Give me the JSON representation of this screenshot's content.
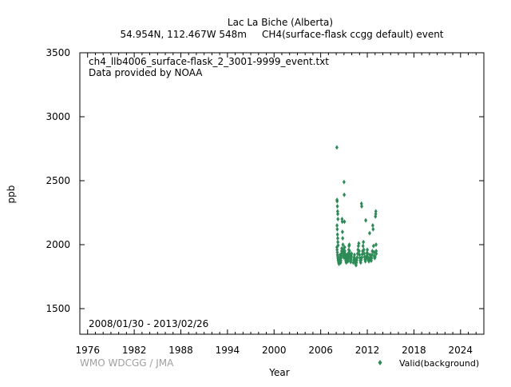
{
  "title_line1": "Lac La Biche (Alberta)",
  "title_line2": "54.954N, 112.467W 548m     CH4(surface-flask ccgg default) event",
  "file_label": "ch4_llb4006_surface-flask_2_3001-9999_event.txt",
  "provider_label": "Data provided by NOAA",
  "date_range": "2008/01/30 - 2013/02/26",
  "credit": "WMO WDCGG / JMA",
  "colors": {
    "series": "#2e8b57",
    "axis": "#000000",
    "credit": "#a0a0a0"
  },
  "chart_data": {
    "type": "scatter",
    "title": "Lac La Biche (Alberta)",
    "xlabel": "Year",
    "ylabel": "ppb",
    "xlim": [
      1975,
      2027
    ],
    "ylim": [
      1300,
      3500
    ],
    "xticks": [
      1976,
      1982,
      1988,
      1994,
      2000,
      2006,
      2012,
      2018,
      2024
    ],
    "yticks": [
      1500,
      2000,
      2500,
      3000,
      3500
    ],
    "grid": false,
    "legend": "bottom-right",
    "series": [
      {
        "name": "Valid(background)",
        "marker": "diamond",
        "points": [
          [
            2008.08,
            2760
          ],
          [
            2008.1,
            2350
          ],
          [
            2008.12,
            2340
          ],
          [
            2008.15,
            2300
          ],
          [
            2008.18,
            2260
          ],
          [
            2008.2,
            2240
          ],
          [
            2008.22,
            2200
          ],
          [
            2008.1,
            2150
          ],
          [
            2008.13,
            2120
          ],
          [
            2008.16,
            2080
          ],
          [
            2008.19,
            2050
          ],
          [
            2008.21,
            2020
          ],
          [
            2008.24,
            1995
          ],
          [
            2008.09,
            1980
          ],
          [
            2008.11,
            1960
          ],
          [
            2008.14,
            1940
          ],
          [
            2008.17,
            1920
          ],
          [
            2008.2,
            1905
          ],
          [
            2008.23,
            1890
          ],
          [
            2008.26,
            1880
          ],
          [
            2008.29,
            1870
          ],
          [
            2008.32,
            1860
          ],
          [
            2008.35,
            1850
          ],
          [
            2008.38,
            1870
          ],
          [
            2008.41,
            1890
          ],
          [
            2008.44,
            1880
          ],
          [
            2008.47,
            1900
          ],
          [
            2008.5,
            1920
          ],
          [
            2008.53,
            1880
          ],
          [
            2008.56,
            1860
          ],
          [
            2008.59,
            1875
          ],
          [
            2008.62,
            1895
          ],
          [
            2008.65,
            1910
          ],
          [
            2008.68,
            1930
          ],
          [
            2008.7,
            1950
          ],
          [
            2008.72,
            1970
          ],
          [
            2008.75,
            2200
          ],
          [
            2008.78,
            2180
          ],
          [
            2008.8,
            2100
          ],
          [
            2008.83,
            2050
          ],
          [
            2008.86,
            2000
          ],
          [
            2008.89,
            1960
          ],
          [
            2008.92,
            1935
          ],
          [
            2008.95,
            1915
          ],
          [
            2008.98,
            1900
          ],
          [
            2009.0,
            2490
          ],
          [
            2009.03,
            2390
          ],
          [
            2009.06,
            2180
          ],
          [
            2009.08,
            1980
          ],
          [
            2009.11,
            1950
          ],
          [
            2009.14,
            1930
          ],
          [
            2009.17,
            1910
          ],
          [
            2009.2,
            1895
          ],
          [
            2009.23,
            1880
          ],
          [
            2009.26,
            1870
          ],
          [
            2009.29,
            1860
          ],
          [
            2009.32,
            1875
          ],
          [
            2009.35,
            1890
          ],
          [
            2009.38,
            1905
          ],
          [
            2009.41,
            1920
          ],
          [
            2009.44,
            1900
          ],
          [
            2009.47,
            1885
          ],
          [
            2009.5,
            1870
          ],
          [
            2009.53,
            1890
          ],
          [
            2009.56,
            1910
          ],
          [
            2009.59,
            1935
          ],
          [
            2009.62,
            1960
          ],
          [
            2009.65,
            1990
          ],
          [
            2009.68,
            2000
          ],
          [
            2009.71,
            1950
          ],
          [
            2009.74,
            1925
          ],
          [
            2009.77,
            1905
          ],
          [
            2009.8,
            1890
          ],
          [
            2009.83,
            1875
          ],
          [
            2009.86,
            1865
          ],
          [
            2009.89,
            1880
          ],
          [
            2009.92,
            1895
          ],
          [
            2009.95,
            1910
          ],
          [
            2009.98,
            1930
          ],
          [
            2010.2,
            1860
          ],
          [
            2010.25,
            1880
          ],
          [
            2010.3,
            1900
          ],
          [
            2010.35,
            1920
          ],
          [
            2010.4,
            1890
          ],
          [
            2010.45,
            1870
          ],
          [
            2010.5,
            1850
          ],
          [
            2010.55,
            1840
          ],
          [
            2010.6,
            1860
          ],
          [
            2010.65,
            1880
          ],
          [
            2010.7,
            1900
          ],
          [
            2010.75,
            1930
          ],
          [
            2010.8,
            1960
          ],
          [
            2010.85,
            1990
          ],
          [
            2010.9,
            2010
          ],
          [
            2010.95,
            1950
          ],
          [
            2011.0,
            1920
          ],
          [
            2011.05,
            1895
          ],
          [
            2011.1,
            1875
          ],
          [
            2011.15,
            1860
          ],
          [
            2011.2,
            1880
          ],
          [
            2011.25,
            2320
          ],
          [
            2011.28,
            2300
          ],
          [
            2011.3,
            1900
          ],
          [
            2011.35,
            1925
          ],
          [
            2011.4,
            1950
          ],
          [
            2011.45,
            1990
          ],
          [
            2011.5,
            2020
          ],
          [
            2011.55,
            1960
          ],
          [
            2011.6,
            1930
          ],
          [
            2011.65,
            1905
          ],
          [
            2011.7,
            1885
          ],
          [
            2011.75,
            1870
          ],
          [
            2011.8,
            2190
          ],
          [
            2011.85,
            1890
          ],
          [
            2011.9,
            1910
          ],
          [
            2011.95,
            1935
          ],
          [
            2012.0,
            1960
          ],
          [
            2012.05,
            1930
          ],
          [
            2012.1,
            1900
          ],
          [
            2012.15,
            1880
          ],
          [
            2012.2,
            1870
          ],
          [
            2012.25,
            1890
          ],
          [
            2012.3,
            2090
          ],
          [
            2012.35,
            1920
          ],
          [
            2012.4,
            1900
          ],
          [
            2012.45,
            1885
          ],
          [
            2012.5,
            1875
          ],
          [
            2012.55,
            1895
          ],
          [
            2012.6,
            1920
          ],
          [
            2012.65,
            1950
          ],
          [
            2012.7,
            2150
          ],
          [
            2012.75,
            2120
          ],
          [
            2012.8,
            1990
          ],
          [
            2012.85,
            1940
          ],
          [
            2012.9,
            1910
          ],
          [
            2012.95,
            1895
          ],
          [
            2013.0,
            1905
          ],
          [
            2013.05,
            2220
          ],
          [
            2013.08,
            2240
          ],
          [
            2013.1,
            2260
          ],
          [
            2013.12,
            2000
          ],
          [
            2013.14,
            1950
          ],
          [
            2013.15,
            1930
          ]
        ]
      }
    ]
  }
}
